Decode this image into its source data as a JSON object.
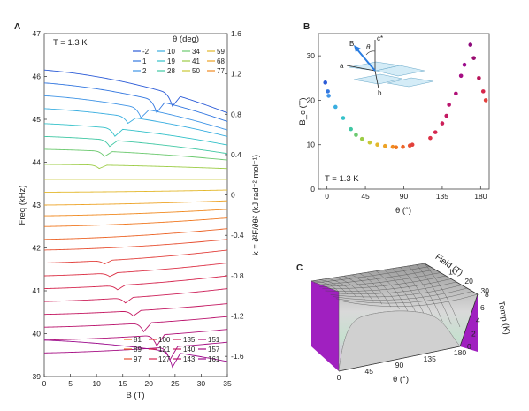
{
  "panels": {
    "a": "A",
    "b": "B",
    "c": "C"
  },
  "chart_data": [
    {
      "type": "line",
      "panel": "A",
      "annotation": "T = 1.3 K",
      "xlabel": "B (T)",
      "ylabel_left": "Freq (kHz)",
      "ylabel_right": "k = ∂²F/∂θ² (kJ rad⁻² mol⁻¹)",
      "xlim": [
        0,
        35
      ],
      "ylim_left": [
        39,
        47
      ],
      "ylim_right": [
        -1.8,
        1.6
      ],
      "x_ticks": [
        0,
        5,
        10,
        15,
        20,
        25,
        30,
        35
      ],
      "y_ticks_left": [
        39,
        40,
        41,
        42,
        43,
        44,
        45,
        46,
        47
      ],
      "y_ticks_right": [
        "-1.6",
        "-1.2",
        "-0.8",
        "-0.4",
        "0",
        "0.4",
        "0.8",
        "1.2",
        "1.6"
      ],
      "legend_title": "θ (deg)",
      "legend_top": [
        "-2",
        "10",
        "34",
        "59",
        "1",
        "19",
        "41",
        "68",
        "2",
        "28",
        "50",
        "77"
      ],
      "legend_bottom": [
        "81",
        "100",
        "135",
        "151",
        "89",
        "121",
        "140",
        "157",
        "97",
        "127",
        "143",
        "161"
      ],
      "series": [
        {
          "theta": -2,
          "color": "#2b5bd7",
          "y0": 46.15,
          "y35": 45.15,
          "dip_x": 24.5,
          "dip": 0.28
        },
        {
          "theta": 1,
          "color": "#3377e0",
          "y0": 45.85,
          "y35": 44.95,
          "dip_x": 21.5,
          "dip": 0.28
        },
        {
          "theta": 2,
          "color": "#3f94e6",
          "y0": 45.55,
          "y35": 44.75,
          "dip_x": 18.5,
          "dip": 0.22
        },
        {
          "theta": 10,
          "color": "#3aaee0",
          "y0": 45.25,
          "y35": 44.6,
          "dip_x": 16.0,
          "dip": 0.15
        },
        {
          "theta": 19,
          "color": "#33c1c9",
          "y0": 44.9,
          "y35": 44.4,
          "dip_x": 13.5,
          "dip": 0.18
        },
        {
          "theta": 28,
          "color": "#3fc7a3",
          "y0": 44.6,
          "y35": 44.2,
          "dip_x": 12.5,
          "dip": 0.15
        },
        {
          "theta": 34,
          "color": "#6cc96f",
          "y0": 44.3,
          "y35": 44.05,
          "dip_x": 11.5,
          "dip": 0.12
        },
        {
          "theta": 41,
          "color": "#9ccc45",
          "y0": 43.95,
          "y35": 43.85,
          "dip_x": 10.5,
          "dip": 0.08
        },
        {
          "theta": 50,
          "color": "#c9c836",
          "y0": 43.6,
          "y35": 43.6,
          "dip_x": 0,
          "dip": 0
        },
        {
          "theta": 59,
          "color": "#e3b82c",
          "y0": 43.3,
          "y35": 43.35,
          "dip_x": 0,
          "dip": 0
        },
        {
          "theta": 68,
          "color": "#eda326",
          "y0": 43.0,
          "y35": 43.1,
          "dip_x": 0,
          "dip": 0
        },
        {
          "theta": 77,
          "color": "#f08a20",
          "y0": 42.75,
          "y35": 42.9,
          "dip_x": 0,
          "dip": 0
        },
        {
          "theta": 81,
          "color": "#f07820",
          "y0": 42.5,
          "y35": 42.7,
          "dip_x": 0,
          "dip": 0
        },
        {
          "theta": 89,
          "color": "#ec6427",
          "y0": 42.2,
          "y35": 42.45,
          "dip_x": 0,
          "dip": 0
        },
        {
          "theta": 97,
          "color": "#e75032",
          "y0": 41.95,
          "y35": 42.2,
          "dip_x": 0,
          "dip": 0
        },
        {
          "theta": 100,
          "color": "#e2403c",
          "y0": 41.65,
          "y35": 41.95,
          "dip_x": 11.5,
          "dip": 0.08
        },
        {
          "theta": 121,
          "color": "#dc3146",
          "y0": 41.35,
          "y35": 41.65,
          "dip_x": 12.5,
          "dip": 0.08
        },
        {
          "theta": 127,
          "color": "#d5264f",
          "y0": 41.05,
          "y35": 41.35,
          "dip_x": 14.0,
          "dip": 0.1
        },
        {
          "theta": 135,
          "color": "#cc1f58",
          "y0": 40.75,
          "y35": 41.05,
          "dip_x": 15.5,
          "dip": 0.12
        },
        {
          "theta": 140,
          "color": "#c41962",
          "y0": 40.45,
          "y35": 40.7,
          "dip_x": 17.0,
          "dip": 0.12
        },
        {
          "theta": 143,
          "color": "#ba146d",
          "y0": 40.15,
          "y35": 40.4,
          "dip_x": 19.0,
          "dip": 0.2
        },
        {
          "theta": 151,
          "color": "#b01078",
          "y0": 39.85,
          "y35": 40.1,
          "dip_x": 21.5,
          "dip": 0.25
        },
        {
          "theta": 157,
          "color": "#a50d83",
          "y0": 39.55,
          "y35": 39.8,
          "dip_x": 24.0,
          "dip": 0.3
        },
        {
          "theta": 161,
          "color": "#9c0b8c",
          "y0": 39.85,
          "y35": 39.35,
          "dip_x": 24.5,
          "dip": 0.35
        }
      ]
    },
    {
      "type": "scatter",
      "panel": "B",
      "annotation": "T = 1.3 K",
      "xlabel": "θ (°)",
      "ylabel": "B_c (T)",
      "xlim": [
        -10,
        190
      ],
      "ylim": [
        0,
        35
      ],
      "x_ticks": [
        0,
        45,
        90,
        135,
        180
      ],
      "y_ticks": [
        0,
        10,
        20,
        30
      ],
      "inset_axis_labels": [
        "c*",
        "θ",
        "B",
        "a",
        "b"
      ],
      "points": [
        {
          "theta": -2,
          "bc": 24.0,
          "color": "#2b5bd7"
        },
        {
          "theta": 1,
          "bc": 22.0,
          "color": "#3377e0"
        },
        {
          "theta": 2,
          "bc": 21.0,
          "color": "#3f94e6"
        },
        {
          "theta": 10,
          "bc": 18.5,
          "color": "#3aaee0"
        },
        {
          "theta": 19,
          "bc": 16.0,
          "color": "#33c1c9"
        },
        {
          "theta": 28,
          "bc": 13.5,
          "color": "#3fc7a3"
        },
        {
          "theta": 34,
          "bc": 12.2,
          "color": "#6cc96f"
        },
        {
          "theta": 41,
          "bc": 11.3,
          "color": "#9ccc45"
        },
        {
          "theta": 50,
          "bc": 10.5,
          "color": "#c9c836"
        },
        {
          "theta": 59,
          "bc": 10.0,
          "color": "#e3b82c"
        },
        {
          "theta": 68,
          "bc": 9.7,
          "color": "#eda326"
        },
        {
          "theta": 77,
          "bc": 9.5,
          "color": "#f08a20"
        },
        {
          "theta": 81,
          "bc": 9.4,
          "color": "#f07820"
        },
        {
          "theta": 89,
          "bc": 9.5,
          "color": "#ec6427"
        },
        {
          "theta": 97,
          "bc": 9.8,
          "color": "#e75032"
        },
        {
          "theta": 100,
          "bc": 10.0,
          "color": "#e2403c"
        },
        {
          "theta": 121,
          "bc": 11.5,
          "color": "#dc3146"
        },
        {
          "theta": 127,
          "bc": 12.8,
          "color": "#d5264f"
        },
        {
          "theta": 135,
          "bc": 14.8,
          "color": "#cc1f58"
        },
        {
          "theta": 140,
          "bc": 16.5,
          "color": "#c41962"
        },
        {
          "theta": 143,
          "bc": 19.0,
          "color": "#ba146d"
        },
        {
          "theta": 151,
          "bc": 21.5,
          "color": "#b01078"
        },
        {
          "theta": 157,
          "bc": 25.5,
          "color": "#a50d83"
        },
        {
          "theta": 161,
          "bc": 28.0,
          "color": "#9c0b8c"
        },
        {
          "theta": 168,
          "bc": 32.5,
          "color": "#8e0a7c"
        },
        {
          "theta": 172,
          "bc": 29.5,
          "color": "#9a0b70"
        },
        {
          "theta": 178,
          "bc": 25.0,
          "color": "#b8145a"
        },
        {
          "theta": 183,
          "bc": 22.0,
          "color": "#d6264a"
        },
        {
          "theta": 186,
          "bc": 20.0,
          "color": "#e2403c"
        }
      ]
    },
    {
      "type": "surface",
      "panel": "C",
      "x_label": "θ (°)",
      "y_label": "Field (T)",
      "z_label": "Temp (K)",
      "x_ticks": [
        "0",
        "45",
        "90",
        "135",
        "180"
      ],
      "y_ticks": [
        "10",
        "20",
        "30"
      ],
      "z_ticks": [
        "0",
        "2",
        "4",
        "6",
        "8"
      ],
      "side_color": "#a020c0"
    }
  ]
}
